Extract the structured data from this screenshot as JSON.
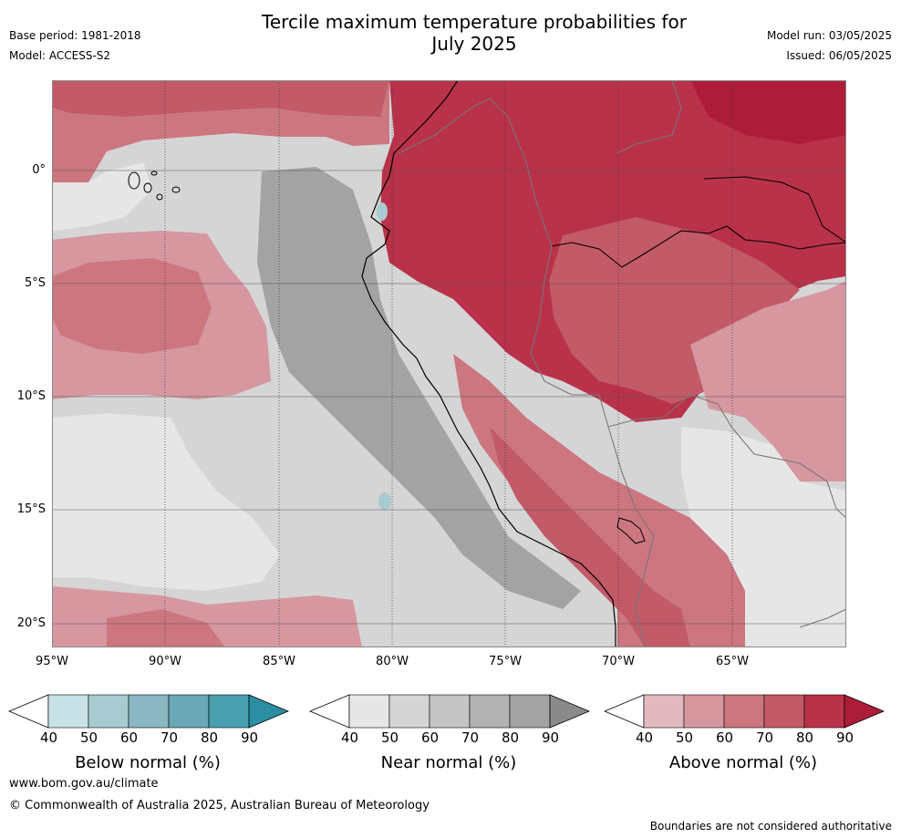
{
  "title_line1": "Tercile maximum temperature probabilities for",
  "title_line2": "July 2025",
  "meta": {
    "base_period": "Base period: 1981-2018",
    "model": "Model: ACCESS-S2",
    "model_run": "Model run: 03/05/2025",
    "issued": "Issued: 06/05/2025"
  },
  "axes": {
    "lat_labels": [
      "0°",
      "5°S",
      "10°S",
      "15°S",
      "20°S"
    ],
    "lon_labels": [
      "95°W",
      "90°W",
      "85°W",
      "80°W",
      "75°W",
      "70°W",
      "65°W"
    ]
  },
  "colorbars": [
    {
      "name": "below",
      "title": "Below normal (%)",
      "ticks": [
        "40",
        "50",
        "60",
        "70",
        "80",
        "90"
      ],
      "colors": [
        "#ffffff",
        "#c8e1e6",
        "#a8cbd1",
        "#89b7c2",
        "#6aa8b5",
        "#48a0b1",
        "#2b8ea3"
      ]
    },
    {
      "name": "near",
      "title": "Near normal (%)",
      "ticks": [
        "40",
        "50",
        "60",
        "70",
        "80",
        "90"
      ],
      "colors": [
        "#ffffff",
        "#e6e6e6",
        "#d5d5d5",
        "#c4c4c4",
        "#b3b3b3",
        "#a3a3a3",
        "#8a8a8a"
      ]
    },
    {
      "name": "above",
      "title": "Above normal (%)",
      "ticks": [
        "40",
        "50",
        "60",
        "70",
        "80",
        "90"
      ],
      "colors": [
        "#ffffff",
        "#e2b9bf",
        "#d6979f",
        "#cc7680",
        "#c35a67",
        "#b9324a",
        "#ad1d3a"
      ]
    }
  ],
  "footer": {
    "website": "www.bom.gov.au/climate",
    "copyright": "© Commonwealth of Australia 2025, Australian Bureau of Meteorology",
    "note": "Boundaries are not considered authoritative"
  }
}
